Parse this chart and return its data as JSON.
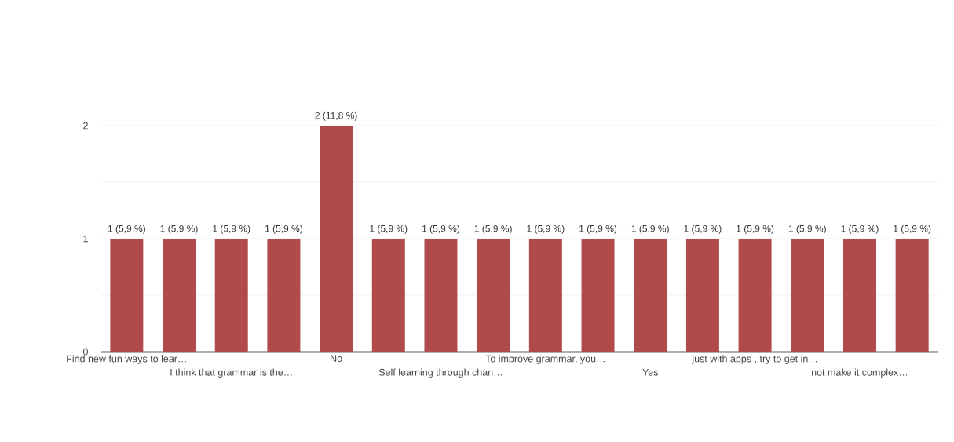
{
  "chart_data": {
    "type": "bar",
    "categories": [
      "Find new fun ways to lear…",
      null,
      "I think that grammar is the…",
      null,
      "No",
      null,
      "Self learning through chan…",
      null,
      "To improve grammar, you…",
      null,
      "Yes",
      null,
      "just with apps , try to get in…",
      null,
      "not make it complex…",
      null
    ],
    "values": [
      1,
      1,
      1,
      1,
      2,
      1,
      1,
      1,
      1,
      1,
      1,
      1,
      1,
      1,
      1,
      1
    ],
    "value_labels": [
      "1 (5,9 %)",
      "1 (5,9 %)",
      "1 (5,9 %)",
      "1 (5,9 %)",
      "2 (11,8 %)",
      "1 (5,9 %)",
      "1 (5,9 %)",
      "1 (5,9 %)",
      "1 (5,9 %)",
      "1 (5,9 %)",
      "1 (5,9 %)",
      "1 (5,9 %)",
      "1 (5,9 %)",
      "1 (5,9 %)",
      "1 (5,9 %)",
      "1 (5,9 %)"
    ],
    "color": "#b14a4a",
    "ylim": [
      0,
      2
    ],
    "yticks": [
      0,
      {
        "value": 0.5,
        "label": null
      },
      1,
      {
        "value": 1.5,
        "label": null
      },
      2
    ],
    "grid": "y"
  }
}
